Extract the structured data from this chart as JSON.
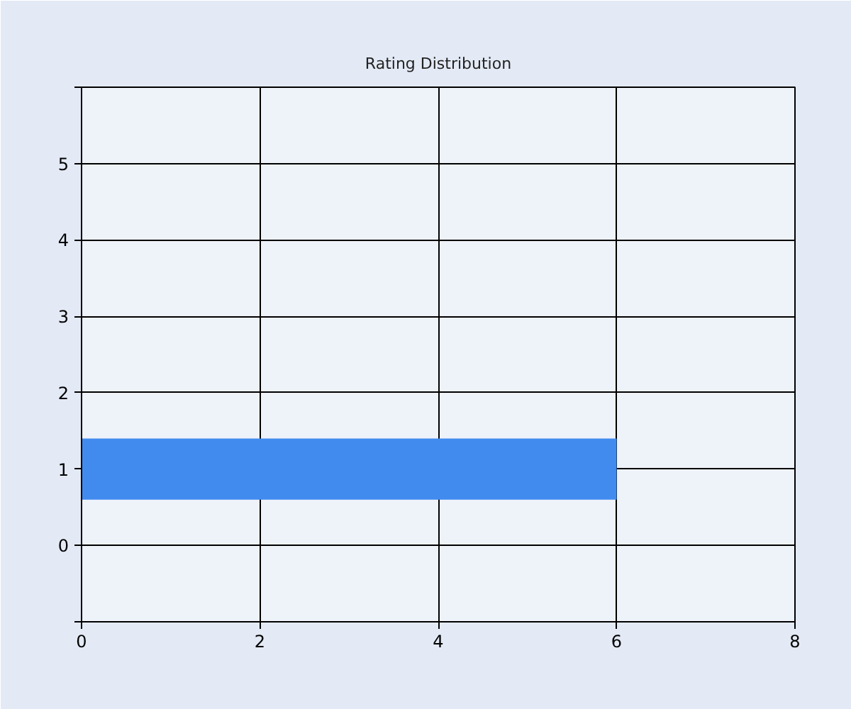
{
  "chart_data": {
    "type": "bar",
    "title": "Rating Distribution",
    "orientation": "horizontal",
    "x": [
      1
    ],
    "values": [
      6
    ],
    "color": "#418bef",
    "xlim": [
      0,
      8
    ],
    "xticks": [
      0,
      2,
      4,
      6,
      8
    ],
    "ylim": [
      -1,
      6
    ],
    "yticks": [
      {
        "value": -1,
        "label": null
      },
      0,
      1,
      2,
      3,
      4,
      5,
      {
        "value": 6,
        "label": null
      }
    ],
    "grid": true
  }
}
